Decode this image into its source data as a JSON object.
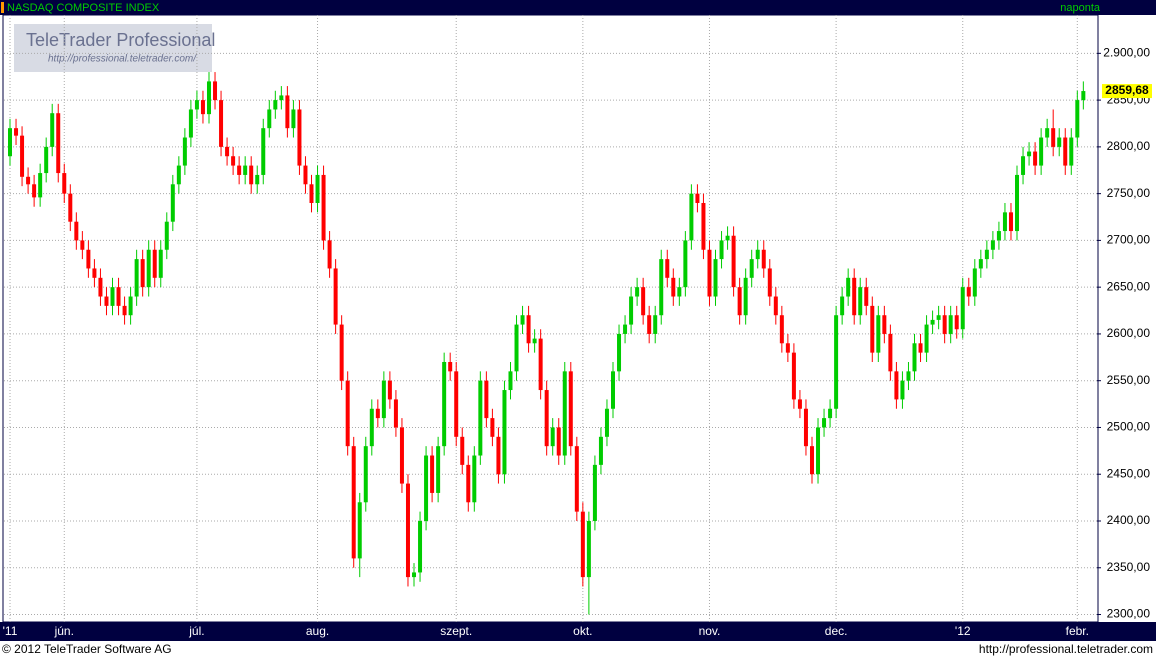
{
  "chart_data": {
    "type": "candlestick",
    "title": "NASDAQ COMPOSITE INDEX",
    "period": "naponta",
    "logo": "TeleTrader Professional",
    "logo_url": "http://professional.teletrader.com/",
    "footer_left": "© 2012 TeleTrader Software AG",
    "footer_right": "http://professional.teletrader.com",
    "last_value_label": "2859,68",
    "up_color": "#00cc00",
    "down_color": "#ff0000",
    "grid": true,
    "ylim": [
      2292,
      2941
    ],
    "yticks": [
      {
        "value": 2300,
        "label": "2300,00"
      },
      {
        "value": 2350,
        "label": "2350,00"
      },
      {
        "value": 2400,
        "label": "2400,00"
      },
      {
        "value": 2450,
        "label": "2450,00"
      },
      {
        "value": 2500,
        "label": "2500,00"
      },
      {
        "value": 2550,
        "label": "2550,00"
      },
      {
        "value": 2600,
        "label": "2600,00"
      },
      {
        "value": 2650,
        "label": "2650,00"
      },
      {
        "value": 2700,
        "label": "2700,00"
      },
      {
        "value": 2750,
        "label": "2750,00"
      },
      {
        "value": 2800,
        "label": "2800,00"
      },
      {
        "value": 2850,
        "label": "2850,00"
      },
      {
        "value": 2900,
        "label": "2.900,00"
      }
    ],
    "categories": [
      "'11",
      null,
      null,
      null,
      null,
      null,
      null,
      null,
      null,
      "jún.",
      null,
      null,
      null,
      null,
      null,
      null,
      null,
      null,
      null,
      null,
      null,
      null,
      null,
      null,
      null,
      null,
      null,
      null,
      null,
      null,
      null,
      "júl.",
      null,
      null,
      null,
      null,
      null,
      null,
      null,
      null,
      null,
      null,
      null,
      null,
      null,
      null,
      null,
      null,
      null,
      null,
      null,
      "aug.",
      null,
      null,
      null,
      null,
      null,
      null,
      null,
      null,
      null,
      null,
      null,
      null,
      null,
      null,
      null,
      null,
      null,
      null,
      null,
      null,
      null,
      null,
      "szept.",
      null,
      null,
      null,
      null,
      null,
      null,
      null,
      null,
      null,
      null,
      null,
      null,
      null,
      null,
      null,
      null,
      null,
      null,
      null,
      null,
      "okt.",
      null,
      null,
      null,
      null,
      null,
      null,
      null,
      null,
      null,
      null,
      null,
      null,
      null,
      null,
      null,
      null,
      null,
      null,
      null,
      null,
      "nov.",
      null,
      null,
      null,
      null,
      null,
      null,
      null,
      null,
      null,
      null,
      null,
      null,
      null,
      null,
      null,
      null,
      null,
      null,
      null,
      null,
      "dec.",
      null,
      null,
      null,
      null,
      null,
      null,
      null,
      null,
      null,
      null,
      null,
      null,
      null,
      null,
      null,
      null,
      null,
      null,
      null,
      null,
      "'12",
      null,
      null,
      null,
      null,
      null,
      null,
      null,
      null,
      null,
      null,
      null,
      null,
      null,
      null,
      null,
      null,
      null,
      null,
      "febr.",
      null
    ],
    "ohlc": [
      [
        2790,
        2830,
        2780,
        2820
      ],
      [
        2820,
        2830,
        2802,
        2812
      ],
      [
        2812,
        2822,
        2758,
        2768
      ],
      [
        2768,
        2778,
        2750,
        2760
      ],
      [
        2760,
        2770,
        2736,
        2746
      ],
      [
        2746,
        2782,
        2736,
        2772
      ],
      [
        2772,
        2810,
        2762,
        2800
      ],
      [
        2800,
        2846,
        2790,
        2836
      ],
      [
        2836,
        2846,
        2762,
        2772
      ],
      [
        2772,
        2782,
        2740,
        2750
      ],
      [
        2750,
        2760,
        2710,
        2720
      ],
      [
        2720,
        2730,
        2690,
        2700
      ],
      [
        2700,
        2710,
        2680,
        2690
      ],
      [
        2690,
        2700,
        2660,
        2670
      ],
      [
        2670,
        2680,
        2650,
        2660
      ],
      [
        2660,
        2670,
        2630,
        2640
      ],
      [
        2640,
        2650,
        2620,
        2630
      ],
      [
        2630,
        2660,
        2620,
        2650
      ],
      [
        2650,
        2660,
        2620,
        2630
      ],
      [
        2630,
        2640,
        2610,
        2620
      ],
      [
        2620,
        2650,
        2610,
        2640
      ],
      [
        2640,
        2690,
        2630,
        2680
      ],
      [
        2680,
        2690,
        2640,
        2650
      ],
      [
        2650,
        2700,
        2640,
        2690
      ],
      [
        2690,
        2700,
        2650,
        2660
      ],
      [
        2660,
        2700,
        2650,
        2690
      ],
      [
        2690,
        2730,
        2680,
        2720
      ],
      [
        2720,
        2770,
        2710,
        2760
      ],
      [
        2760,
        2790,
        2750,
        2780
      ],
      [
        2780,
        2820,
        2770,
        2810
      ],
      [
        2810,
        2850,
        2800,
        2840
      ],
      [
        2840,
        2860,
        2830,
        2850
      ],
      [
        2850,
        2860,
        2825,
        2835
      ],
      [
        2835,
        2880,
        2825,
        2870
      ],
      [
        2870,
        2880,
        2840,
        2850
      ],
      [
        2850,
        2860,
        2790,
        2800
      ],
      [
        2800,
        2810,
        2780,
        2790
      ],
      [
        2790,
        2800,
        2770,
        2780
      ],
      [
        2780,
        2790,
        2760,
        2770
      ],
      [
        2770,
        2790,
        2760,
        2780
      ],
      [
        2780,
        2790,
        2750,
        2760
      ],
      [
        2760,
        2780,
        2750,
        2770
      ],
      [
        2770,
        2830,
        2760,
        2820
      ],
      [
        2820,
        2850,
        2810,
        2840
      ],
      [
        2840,
        2860,
        2830,
        2850
      ],
      [
        2850,
        2865,
        2840,
        2855
      ],
      [
        2855,
        2865,
        2810,
        2820
      ],
      [
        2820,
        2850,
        2810,
        2840
      ],
      [
        2840,
        2850,
        2770,
        2780
      ],
      [
        2780,
        2790,
        2750,
        2760
      ],
      [
        2760,
        2770,
        2730,
        2740
      ],
      [
        2740,
        2780,
        2730,
        2770
      ],
      [
        2770,
        2780,
        2690,
        2700
      ],
      [
        2700,
        2710,
        2660,
        2670
      ],
      [
        2670,
        2680,
        2600,
        2610
      ],
      [
        2610,
        2620,
        2540,
        2550
      ],
      [
        2550,
        2560,
        2470,
        2480
      ],
      [
        2480,
        2490,
        2350,
        2360
      ],
      [
        2360,
        2430,
        2340,
        2420
      ],
      [
        2420,
        2490,
        2410,
        2480
      ],
      [
        2480,
        2530,
        2470,
        2520
      ],
      [
        2520,
        2530,
        2500,
        2510
      ],
      [
        2510,
        2560,
        2500,
        2550
      ],
      [
        2550,
        2560,
        2520,
        2530
      ],
      [
        2530,
        2540,
        2490,
        2500
      ],
      [
        2500,
        2510,
        2430,
        2440
      ],
      [
        2440,
        2450,
        2330,
        2340
      ],
      [
        2340,
        2355,
        2330,
        2345
      ],
      [
        2345,
        2410,
        2335,
        2400
      ],
      [
        2400,
        2480,
        2390,
        2470
      ],
      [
        2470,
        2480,
        2420,
        2430
      ],
      [
        2430,
        2490,
        2420,
        2480
      ],
      [
        2480,
        2580,
        2470,
        2570
      ],
      [
        2570,
        2580,
        2550,
        2560
      ],
      [
        2560,
        2570,
        2480,
        2490
      ],
      [
        2490,
        2500,
        2450,
        2460
      ],
      [
        2460,
        2470,
        2410,
        2420
      ],
      [
        2420,
        2480,
        2410,
        2470
      ],
      [
        2470,
        2560,
        2460,
        2550
      ],
      [
        2550,
        2560,
        2500,
        2510
      ],
      [
        2510,
        2520,
        2480,
        2490
      ],
      [
        2490,
        2500,
        2440,
        2450
      ],
      [
        2450,
        2550,
        2440,
        2540
      ],
      [
        2540,
        2570,
        2530,
        2560
      ],
      [
        2560,
        2620,
        2550,
        2610
      ],
      [
        2610,
        2630,
        2600,
        2620
      ],
      [
        2620,
        2630,
        2580,
        2590
      ],
      [
        2590,
        2605,
        2580,
        2595
      ],
      [
        2595,
        2605,
        2530,
        2540
      ],
      [
        2540,
        2550,
        2470,
        2480
      ],
      [
        2480,
        2510,
        2470,
        2500
      ],
      [
        2500,
        2510,
        2460,
        2470
      ],
      [
        2470,
        2570,
        2460,
        2560
      ],
      [
        2560,
        2570,
        2470,
        2480
      ],
      [
        2480,
        2490,
        2400,
        2410
      ],
      [
        2410,
        2420,
        2330,
        2340
      ],
      [
        2340,
        2410,
        2300,
        2400
      ],
      [
        2400,
        2470,
        2390,
        2460
      ],
      [
        2460,
        2500,
        2450,
        2490
      ],
      [
        2490,
        2530,
        2480,
        2520
      ],
      [
        2520,
        2570,
        2510,
        2560
      ],
      [
        2560,
        2610,
        2550,
        2600
      ],
      [
        2600,
        2620,
        2590,
        2610
      ],
      [
        2610,
        2650,
        2600,
        2640
      ],
      [
        2640,
        2660,
        2630,
        2650
      ],
      [
        2650,
        2660,
        2610,
        2620
      ],
      [
        2620,
        2630,
        2590,
        2600
      ],
      [
        2600,
        2630,
        2590,
        2620
      ],
      [
        2620,
        2690,
        2610,
        2680
      ],
      [
        2680,
        2690,
        2650,
        2660
      ],
      [
        2660,
        2670,
        2630,
        2640
      ],
      [
        2640,
        2660,
        2630,
        2650
      ],
      [
        2650,
        2710,
        2640,
        2700
      ],
      [
        2700,
        2760,
        2690,
        2750
      ],
      [
        2750,
        2760,
        2730,
        2740
      ],
      [
        2740,
        2750,
        2680,
        2690
      ],
      [
        2690,
        2700,
        2630,
        2640
      ],
      [
        2640,
        2690,
        2630,
        2680
      ],
      [
        2680,
        2710,
        2670,
        2700
      ],
      [
        2700,
        2715,
        2690,
        2705
      ],
      [
        2705,
        2715,
        2640,
        2650
      ],
      [
        2650,
        2660,
        2610,
        2620
      ],
      [
        2620,
        2670,
        2610,
        2660
      ],
      [
        2660,
        2690,
        2650,
        2680
      ],
      [
        2680,
        2700,
        2670,
        2690
      ],
      [
        2690,
        2700,
        2660,
        2670
      ],
      [
        2670,
        2680,
        2630,
        2640
      ],
      [
        2640,
        2650,
        2610,
        2620
      ],
      [
        2620,
        2630,
        2580,
        2590
      ],
      [
        2590,
        2600,
        2570,
        2580
      ],
      [
        2580,
        2590,
        2520,
        2530
      ],
      [
        2530,
        2540,
        2510,
        2520
      ],
      [
        2520,
        2530,
        2470,
        2480
      ],
      [
        2480,
        2490,
        2440,
        2450
      ],
      [
        2450,
        2510,
        2440,
        2500
      ],
      [
        2500,
        2520,
        2490,
        2510
      ],
      [
        2510,
        2530,
        2500,
        2520
      ],
      [
        2520,
        2630,
        2510,
        2620
      ],
      [
        2620,
        2650,
        2610,
        2640
      ],
      [
        2640,
        2670,
        2630,
        2660
      ],
      [
        2660,
        2670,
        2610,
        2620
      ],
      [
        2620,
        2660,
        2610,
        2650
      ],
      [
        2650,
        2660,
        2620,
        2630
      ],
      [
        2630,
        2640,
        2570,
        2580
      ],
      [
        2580,
        2630,
        2570,
        2620
      ],
      [
        2620,
        2630,
        2590,
        2600
      ],
      [
        2600,
        2610,
        2550,
        2560
      ],
      [
        2560,
        2570,
        2520,
        2530
      ],
      [
        2530,
        2560,
        2520,
        2550
      ],
      [
        2550,
        2570,
        2540,
        2560
      ],
      [
        2560,
        2600,
        2550,
        2590
      ],
      [
        2590,
        2600,
        2570,
        2580
      ],
      [
        2580,
        2620,
        2570,
        2610
      ],
      [
        2610,
        2625,
        2600,
        2615
      ],
      [
        2615,
        2630,
        2605,
        2620
      ],
      [
        2620,
        2630,
        2590,
        2600
      ],
      [
        2600,
        2630,
        2590,
        2620
      ],
      [
        2620,
        2630,
        2595,
        2605
      ],
      [
        2605,
        2660,
        2595,
        2650
      ],
      [
        2650,
        2660,
        2630,
        2640
      ],
      [
        2640,
        2680,
        2630,
        2670
      ],
      [
        2670,
        2690,
        2660,
        2680
      ],
      [
        2680,
        2700,
        2670,
        2690
      ],
      [
        2690,
        2710,
        2680,
        2700
      ],
      [
        2700,
        2720,
        2690,
        2710
      ],
      [
        2710,
        2740,
        2700,
        2730
      ],
      [
        2730,
        2740,
        2700,
        2710
      ],
      [
        2710,
        2780,
        2700,
        2770
      ],
      [
        2770,
        2800,
        2760,
        2790
      ],
      [
        2790,
        2805,
        2780,
        2795
      ],
      [
        2795,
        2805,
        2770,
        2780
      ],
      [
        2780,
        2820,
        2770,
        2810
      ],
      [
        2810,
        2830,
        2800,
        2820
      ],
      [
        2820,
        2840,
        2790,
        2800
      ],
      [
        2800,
        2820,
        2790,
        2810
      ],
      [
        2810,
        2820,
        2770,
        2780
      ],
      [
        2780,
        2820,
        2770,
        2810
      ],
      [
        2810,
        2860,
        2800,
        2850
      ],
      [
        2850,
        2870,
        2840,
        2859.68
      ]
    ]
  }
}
